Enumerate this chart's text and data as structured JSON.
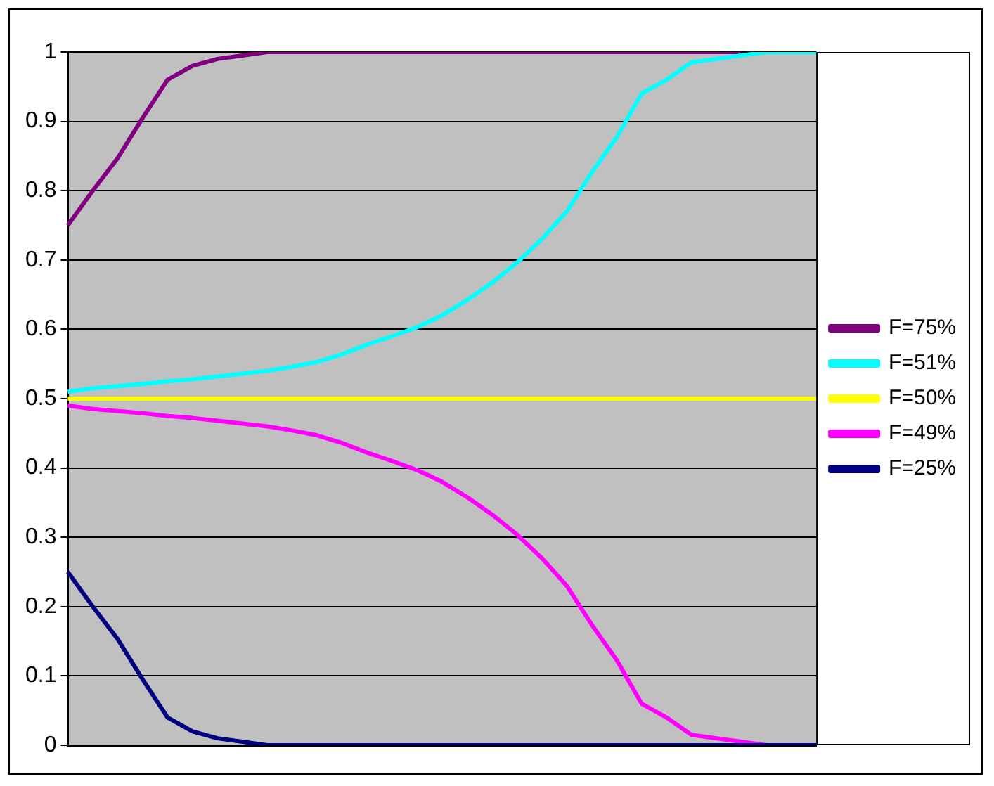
{
  "chart_data": {
    "type": "line",
    "categories": [
      null,
      null,
      null,
      null,
      null,
      null,
      null,
      null,
      null,
      null,
      null,
      null,
      null,
      null,
      null,
      null,
      null,
      null,
      null,
      null,
      null,
      null,
      null,
      null,
      null,
      null,
      null,
      null,
      null,
      null,
      null
    ],
    "series": [
      {
        "name": "F=75%",
        "color": "#800080",
        "values": [
          0.75,
          0.8,
          0.847,
          0.905,
          0.96,
          0.98,
          0.99,
          0.995,
          1,
          1,
          1,
          1,
          1,
          1,
          1,
          1,
          1,
          1,
          1,
          1,
          1,
          1,
          1,
          1,
          1,
          1,
          1,
          1,
          null,
          null,
          null
        ]
      },
      {
        "name": "F=51%",
        "color": "#00ffff",
        "values": [
          0.51,
          0.515,
          0.518,
          0.521,
          0.525,
          0.528,
          0.532,
          0.536,
          0.54,
          0.546,
          0.553,
          0.564,
          0.578,
          0.59,
          0.603,
          0.62,
          0.642,
          0.667,
          0.696,
          0.73,
          0.77,
          0.826,
          0.877,
          0.94,
          0.96,
          0.985,
          0.99,
          0.995,
          1,
          1,
          1
        ]
      },
      {
        "name": "F=50%",
        "color": "#ffff00",
        "values": [
          0.5,
          0.5,
          0.5,
          0.5,
          0.5,
          0.5,
          0.5,
          0.5,
          0.5,
          0.5,
          0.5,
          0.5,
          0.5,
          0.5,
          0.5,
          0.5,
          0.5,
          0.5,
          0.5,
          0.5,
          0.5,
          0.5,
          0.5,
          0.5,
          0.5,
          0.5,
          0.5,
          0.5,
          0.5,
          0.5,
          0.5
        ]
      },
      {
        "name": "F=49%",
        "color": "#ff00ff",
        "values": [
          0.49,
          0.485,
          0.482,
          0.479,
          0.475,
          0.472,
          0.468,
          0.464,
          0.46,
          0.454,
          0.447,
          0.436,
          0.422,
          0.41,
          0.397,
          0.38,
          0.358,
          0.333,
          0.304,
          0.27,
          0.23,
          0.174,
          0.123,
          0.06,
          0.04,
          0.015,
          0.01,
          0.005,
          0,
          null,
          null
        ]
      },
      {
        "name": "F=25%",
        "color": "#000080",
        "values": [
          0.25,
          0.2,
          0.153,
          0.095,
          0.04,
          0.02,
          0.01,
          0.005,
          0,
          0,
          0,
          0,
          0,
          0,
          0,
          0,
          0,
          0,
          0,
          0,
          0,
          0,
          0,
          0,
          0,
          0,
          0,
          0,
          0,
          0,
          0
        ]
      }
    ],
    "ylim": [
      0,
      1
    ],
    "yticks": [
      0,
      0.1,
      0.2,
      0.3,
      0.4,
      0.5,
      0.6,
      0.7,
      0.8,
      0.9,
      1
    ],
    "grid": "y",
    "legend": "right",
    "marker": "none",
    "line_style": "solid",
    "tick_labels": "y"
  }
}
